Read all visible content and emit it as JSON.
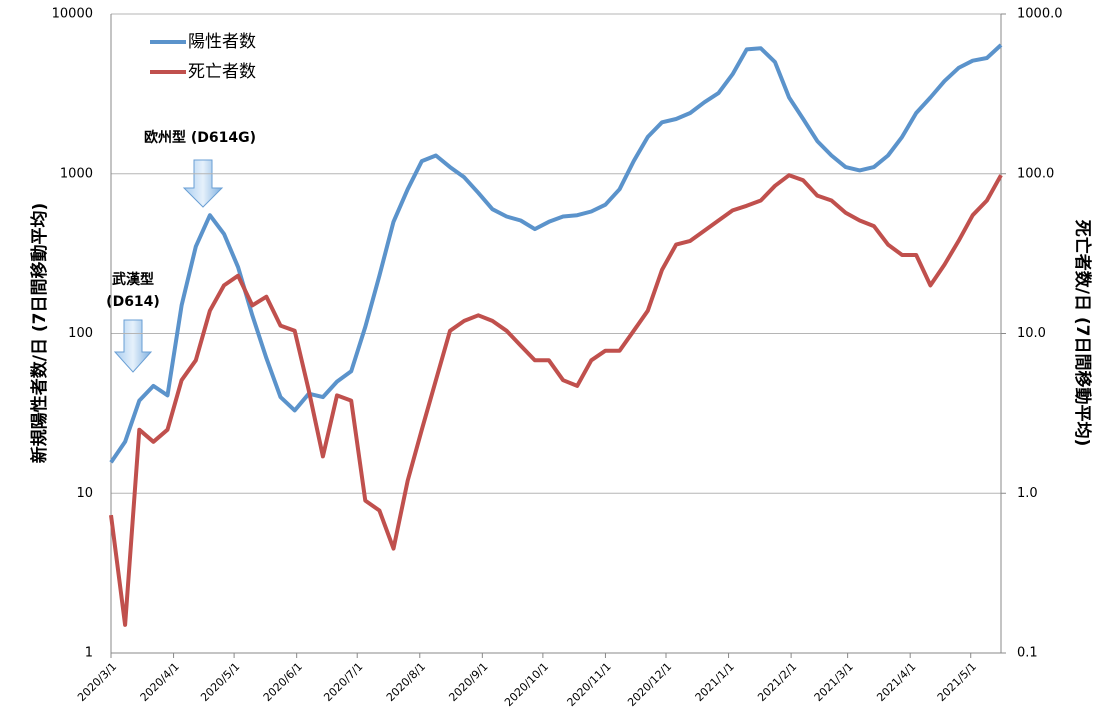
{
  "chart_data": {
    "type": "line",
    "y_label": "新規陽性者数/日 (7日間移動平均)",
    "y2_label": "死亡者数/日 (7日間移動平均)",
    "yscale": "log",
    "y2scale": "log",
    "grid": true,
    "legend": "upper left",
    "ylim": [
      1,
      10000
    ],
    "yticks": [
      1,
      10,
      100,
      1000,
      10000
    ],
    "y2lim": [
      0.1,
      1000
    ],
    "y2ticks": [
      0.1,
      {
        "value": 1,
        "label": "1.0"
      },
      {
        "value": 10,
        "label": "10.0"
      },
      {
        "value": 100,
        "label": "100.0"
      },
      {
        "value": 1000,
        "label": "1000.0"
      }
    ],
    "xlim": [
      "2020/3/1",
      "2021/5/16"
    ],
    "xticks": [
      "2020/3/1",
      "2020/4/1",
      "2020/5/1",
      "2020/6/1",
      "2020/7/1",
      "2020/8/1",
      "2020/9/1",
      "2020/10/1",
      "2020/11/1",
      "2020/12/1",
      "2021/1/1",
      "2021/2/1",
      "2021/3/1",
      "2021/4/1",
      "2021/5/1"
    ],
    "x": [
      "2020/3/1",
      "2020/3/8",
      "2020/3/15",
      "2020/3/22",
      "2020/3/29",
      "2020/4/5",
      "2020/4/12",
      "2020/4/19",
      "2020/4/26",
      "2020/5/3",
      "2020/5/10",
      "2020/5/17",
      "2020/5/24",
      "2020/5/31",
      "2020/6/7",
      "2020/6/14",
      "2020/6/21",
      "2020/6/28",
      "2020/7/5",
      "2020/7/12",
      "2020/7/19",
      "2020/7/26",
      "2020/8/2",
      "2020/8/9",
      "2020/8/16",
      "2020/8/23",
      "2020/8/30",
      "2020/9/6",
      "2020/9/13",
      "2020/9/20",
      "2020/9/27",
      "2020/10/4",
      "2020/10/11",
      "2020/10/18",
      "2020/10/25",
      "2020/11/1",
      "2020/11/8",
      "2020/11/15",
      "2020/11/22",
      "2020/11/29",
      "2020/12/6",
      "2020/12/13",
      "2020/12/20",
      "2020/12/27",
      "2021/1/3",
      "2021/1/10",
      "2021/1/17",
      "2021/1/24",
      "2021/1/31",
      "2021/2/7",
      "2021/2/14",
      "2021/2/21",
      "2021/2/28",
      "2021/3/7",
      "2021/3/14",
      "2021/3/21",
      "2021/3/28",
      "2021/4/4",
      "2021/4/11",
      "2021/4/18",
      "2021/4/25",
      "2021/5/2",
      "2021/5/9",
      "2021/5/16"
    ],
    "series": [
      {
        "name": "陽性者数",
        "color": "#5b93cb",
        "values": [
          15.6,
          21,
          38,
          47,
          41,
          150,
          350,
          550,
          420,
          260,
          130,
          70,
          40,
          33,
          42,
          40,
          50,
          58,
          110,
          230,
          500,
          800,
          1200,
          1300,
          1100,
          950,
          760,
          600,
          540,
          510,
          450,
          500,
          540,
          550,
          580,
          640,
          800,
          1200,
          1700,
          2100,
          2200,
          2400,
          2800,
          3200,
          4200,
          6000,
          6100,
          5000,
          3000,
          2200,
          1600,
          1300,
          1100,
          1050,
          1100,
          1300,
          1700,
          2400,
          3000,
          3800,
          4600,
          5100,
          5300,
          6400
        ]
      },
      {
        "name": "死亡者数",
        "color": "#c0504d",
        "axis": "y2",
        "values": [
          0.73,
          0.15,
          2.5,
          2.1,
          2.5,
          5.1,
          6.8,
          13.9,
          20,
          23,
          15,
          17,
          11.2,
          10.4,
          4.4,
          1.7,
          4.1,
          3.8,
          0.9,
          0.78,
          0.45,
          1.2,
          2.5,
          5.1,
          10.4,
          12,
          13,
          12,
          10.4,
          8.4,
          6.8,
          6.8,
          5.1,
          4.7,
          6.8,
          7.8,
          7.8,
          10.4,
          13.9,
          25,
          36,
          38,
          44,
          51,
          59,
          63,
          68,
          84,
          98,
          91,
          73,
          68,
          57,
          51,
          47,
          36,
          31,
          31,
          20,
          27,
          38,
          55,
          68,
          98
        ]
      }
    ],
    "annotations": [
      {
        "lines": [
          "武漢型",
          "(D614)"
        ]
      },
      {
        "lines": [
          "欧州型 (D614G)"
        ]
      }
    ]
  }
}
